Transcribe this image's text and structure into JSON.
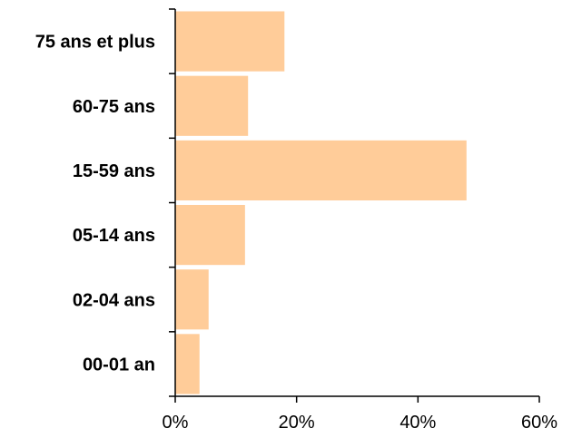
{
  "chart_data": {
    "type": "bar",
    "orientation": "horizontal",
    "categories": [
      "75 ans et plus",
      "60-75 ans",
      "15-59 ans",
      "05-14 ans",
      "02-04 ans",
      "00-01 an"
    ],
    "values": [
      18,
      12,
      48,
      11.5,
      5.5,
      4
    ],
    "xlim": [
      0,
      60
    ],
    "xticks": [
      0,
      20,
      40,
      60
    ],
    "xtick_labels": [
      "0%",
      "20%",
      "40%",
      "60%"
    ],
    "title": "",
    "xlabel": "",
    "ylabel": "",
    "bar_color": "#FFCC99",
    "grid": false,
    "legend": "none"
  }
}
